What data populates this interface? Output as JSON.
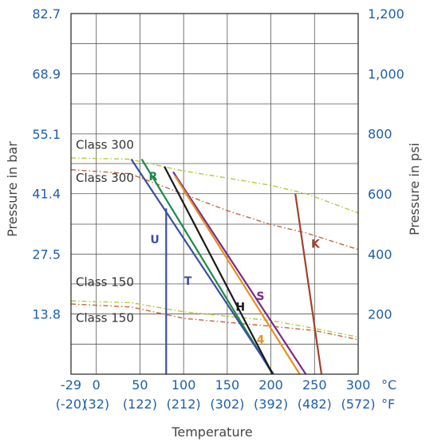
{
  "chart_data": {
    "type": "line",
    "xlabel": "Temperature",
    "ylabel_left": "Pressure in bar",
    "ylabel_right": "Pressure in psi",
    "x_unit_c": "°C",
    "x_unit_f": "°F",
    "xlim": [
      -29,
      300
    ],
    "ylim_bar": [
      0,
      82.7
    ],
    "ylim_psi": [
      0,
      1200
    ],
    "grid": true,
    "x_ticks": [
      {
        "c": -29,
        "c_label": "-29",
        "f_label": "(-20)"
      },
      {
        "c": 0,
        "c_label": "0",
        "f_label": "(32)"
      },
      {
        "c": 50,
        "c_label": "50",
        "f_label": "(122)"
      },
      {
        "c": 100,
        "c_label": "100",
        "f_label": "(212)"
      },
      {
        "c": 150,
        "c_label": "150",
        "f_label": "(302)"
      },
      {
        "c": 200,
        "c_label": "200",
        "f_label": "(392)"
      },
      {
        "c": 250,
        "c_label": "250",
        "f_label": "(482)"
      },
      {
        "c": 300,
        "c_label": "300",
        "f_label": "(572)"
      }
    ],
    "y_ticks_bar": [
      {
        "v": 13.8,
        "label": "13.8"
      },
      {
        "v": 27.5,
        "label": "27.5"
      },
      {
        "v": 41.4,
        "label": "41.4"
      },
      {
        "v": 55.1,
        "label": "55.1"
      },
      {
        "v": 68.9,
        "label": "68.9"
      },
      {
        "v": 82.7,
        "label": "82.7"
      }
    ],
    "y_ticks_psi": [
      {
        "v": 200,
        "label": "200"
      },
      {
        "v": 400,
        "label": "400"
      },
      {
        "v": 600,
        "label": "600"
      },
      {
        "v": 800,
        "label": "800"
      },
      {
        "v": 1000,
        "label": "1,000"
      },
      {
        "v": 1200,
        "label": "1,200"
      }
    ],
    "grid_y_bar": [
      6.9,
      13.8,
      20.7,
      27.5,
      34.4,
      41.4,
      48.3,
      55.1,
      62.0,
      68.9,
      75.8,
      82.7
    ],
    "class_curves": [
      {
        "label": "Class 300",
        "color": "#b5c93a",
        "label_pos": [
          -29,
          51.7
        ],
        "points": [
          [
            -29,
            49.6
          ],
          [
            38,
            49.3
          ],
          [
            100,
            46.6
          ],
          [
            150,
            45.0
          ],
          [
            200,
            43.3
          ],
          [
            240,
            41.4
          ],
          [
            300,
            37.0
          ]
        ]
      },
      {
        "label": "Class 300",
        "color": "#c2663a",
        "label_pos": [
          -29,
          44.1
        ],
        "points": [
          [
            -29,
            46.9
          ],
          [
            38,
            46.0
          ],
          [
            100,
            41.3
          ],
          [
            150,
            37.5
          ],
          [
            200,
            34.3
          ],
          [
            240,
            32.4
          ],
          [
            300,
            28.6
          ]
        ]
      },
      {
        "label": "Class 150",
        "color": "#b5c93a",
        "label_pos": [
          -29,
          20.2
        ],
        "points": [
          [
            -29,
            16.8
          ],
          [
            40,
            16.4
          ],
          [
            100,
            14.3
          ],
          [
            150,
            13.3
          ],
          [
            200,
            12.3
          ],
          [
            250,
            10.5
          ],
          [
            300,
            8.5
          ]
        ]
      },
      {
        "label": "Class 150",
        "color": "#c2663a",
        "label_pos": [
          -29,
          12.0
        ],
        "points": [
          [
            -29,
            16.1
          ],
          [
            40,
            15.4
          ],
          [
            100,
            12.8
          ],
          [
            150,
            11.9
          ],
          [
            200,
            11.0
          ],
          [
            250,
            10.0
          ],
          [
            300,
            7.9
          ]
        ]
      }
    ],
    "series": [
      {
        "name": "R",
        "color": "#1e8a4a",
        "label_pos": [
          65,
          44.5
        ],
        "points": [
          [
            52,
            49.3
          ],
          [
            202,
            0
          ]
        ]
      },
      {
        "name": "T",
        "color": "#3b4fa0",
        "label_pos": [
          105,
          20.5
        ],
        "points": [
          [
            40,
            49.3
          ],
          [
            203,
            0
          ]
        ]
      },
      {
        "name": "H",
        "color": "#1a1a1a",
        "label_pos": [
          165,
          14.5
        ],
        "points": [
          [
            78,
            47.6
          ],
          [
            202,
            0
          ]
        ]
      },
      {
        "name": "S",
        "color": "#7a2a8a",
        "label_pos": [
          188,
          17.0
        ],
        "points": [
          [
            88,
            46.4
          ],
          [
            240,
            0
          ]
        ]
      },
      {
        "name": "4",
        "color": "#e8901c",
        "label_pos": [
          188,
          7.0
        ],
        "points": [
          [
            90,
            45.5
          ],
          [
            233,
            0
          ]
        ]
      },
      {
        "name": "K",
        "color": "#a0422a",
        "label_pos": [
          251,
          29.0
        ],
        "points": [
          [
            228,
            41.4
          ],
          [
            258,
            0
          ]
        ]
      },
      {
        "name": "U",
        "color": "#3b4fa0",
        "label_pos": [
          67,
          30.0
        ],
        "points": [
          [
            80,
            38.0
          ],
          [
            80,
            0
          ]
        ]
      }
    ]
  }
}
